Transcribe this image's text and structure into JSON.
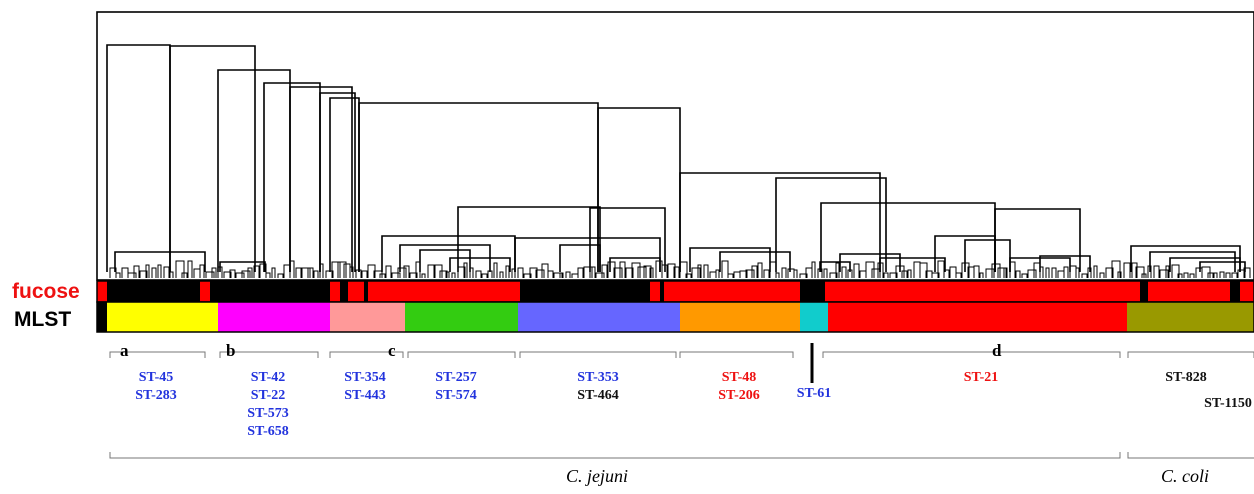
{
  "row_labels": {
    "fucose": "fucose",
    "mlst": "MLST"
  },
  "colors": {
    "fucose_positive": "#ff0000",
    "fucose_negative": "#000000",
    "label_blue": "#2233dd",
    "label_red": "#ee1111",
    "label_black": "#111111"
  },
  "mlst_segments": [
    {
      "color": "#ffff00"
    },
    {
      "color": "#ff00ff"
    },
    {
      "color": "#ff9999"
    },
    {
      "color": "#33cc11"
    },
    {
      "color": "#6666ff"
    },
    {
      "color": "#ff9900"
    },
    {
      "color": "#11cccc"
    },
    {
      "color": "#ff0000"
    },
    {
      "color": "#999900"
    }
  ],
  "groups": [
    {
      "letter": "a",
      "sts": [
        {
          "text": "ST-45",
          "color": "blue"
        },
        {
          "text": "ST-283",
          "color": "blue"
        }
      ]
    },
    {
      "letter": "b",
      "sts": [
        {
          "text": "ST-42",
          "color": "blue"
        },
        {
          "text": "ST-22",
          "color": "blue"
        },
        {
          "text": "ST-573",
          "color": "blue"
        },
        {
          "text": "ST-658",
          "color": "blue"
        }
      ]
    },
    {
      "letter": "c",
      "sts": [
        {
          "text": "ST-354",
          "color": "blue"
        },
        {
          "text": "ST-443",
          "color": "blue"
        }
      ]
    },
    {
      "letter": "",
      "sts": [
        {
          "text": "ST-257",
          "color": "blue"
        },
        {
          "text": "ST-574",
          "color": "blue"
        }
      ]
    },
    {
      "letter": "",
      "sts": [
        {
          "text": "ST-353",
          "color": "blue"
        },
        {
          "text": "ST-464",
          "color": "black"
        }
      ]
    },
    {
      "letter": "",
      "sts": [
        {
          "text": "ST-48",
          "color": "red"
        },
        {
          "text": "ST-206",
          "color": "red"
        }
      ]
    },
    {
      "letter": "",
      "sts": [
        {
          "text": "ST-61",
          "color": "blue"
        }
      ]
    },
    {
      "letter": "d",
      "sts": [
        {
          "text": "ST-21",
          "color": "red"
        }
      ]
    },
    {
      "letter": "",
      "sts": [
        {
          "text": "ST-828",
          "color": "black"
        },
        {
          "text": "ST-1150",
          "color": "black"
        }
      ]
    }
  ],
  "species": {
    "jejuni": "C. jejuni",
    "coli": "C. coli"
  }
}
